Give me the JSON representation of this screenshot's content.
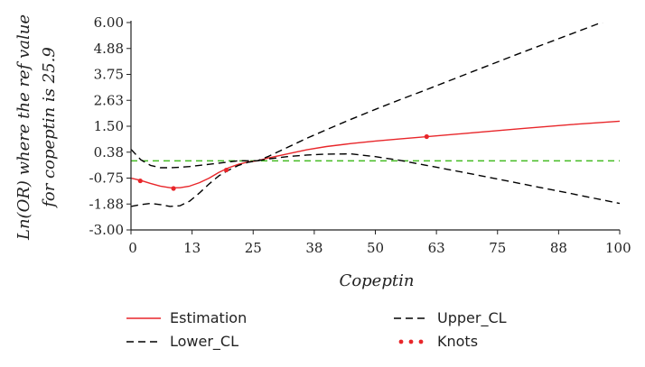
{
  "chart_data": {
    "type": "line",
    "xlabel": "Copeptin",
    "ylabel_line1": "Ln(OR) where the ref value",
    "ylabel_line2": "for copeptin is 25.9",
    "xlim": [
      0,
      100
    ],
    "ylim": [
      -3.0,
      6.0
    ],
    "x_ticks": [
      "0",
      "13",
      "25",
      "38",
      "50",
      "63",
      "75",
      "88",
      "100"
    ],
    "x_tick_values": [
      0,
      12.5,
      25,
      37.5,
      50,
      62.5,
      75,
      87.5,
      100
    ],
    "y_ticks": [
      "6.00",
      "4.88",
      "3.75",
      "2.63",
      "1.50",
      "0.38",
      "-0.75",
      "-1.88",
      "-3.00"
    ],
    "y_tick_values": [
      6.0,
      4.875,
      3.75,
      2.625,
      1.5,
      0.375,
      -0.75,
      -1.875,
      -3.0
    ],
    "reference_line": {
      "y": 0,
      "color": "#44bb22"
    },
    "series": [
      {
        "name": "Estimation",
        "color": "#e8262a",
        "style": "solid",
        "x": [
          0,
          2,
          4,
          6,
          8,
          10,
          12,
          14,
          16,
          18,
          20,
          22,
          24,
          25.9,
          28,
          32,
          36,
          40,
          45,
          50,
          55,
          60,
          70,
          80,
          90,
          100
        ],
        "y": [
          -0.75,
          -0.85,
          -0.98,
          -1.1,
          -1.17,
          -1.17,
          -1.1,
          -0.95,
          -0.75,
          -0.5,
          -0.3,
          -0.15,
          -0.05,
          0.0,
          0.12,
          0.3,
          0.48,
          0.62,
          0.75,
          0.86,
          0.95,
          1.04,
          1.22,
          1.4,
          1.57,
          1.72
        ]
      },
      {
        "name": "Upper_CL",
        "color": "#000000",
        "style": "dashed",
        "x": [
          0,
          2,
          4,
          6,
          8,
          10,
          12,
          14,
          16,
          18,
          20,
          22,
          24,
          25.9,
          28,
          32,
          36,
          40,
          45,
          50,
          55,
          60,
          70,
          80,
          90,
          100
        ],
        "y": [
          0.5,
          0.05,
          -0.2,
          -0.3,
          -0.3,
          -0.28,
          -0.25,
          -0.2,
          -0.15,
          -0.1,
          -0.05,
          0.0,
          0.0,
          0.0,
          0.18,
          0.58,
          0.98,
          1.35,
          1.8,
          2.23,
          2.65,
          3.05,
          3.88,
          4.7,
          5.5,
          6.3
        ]
      },
      {
        "name": "Lower_CL",
        "color": "#000000",
        "style": "dashed",
        "x": [
          0,
          2,
          4,
          6,
          8,
          10,
          12,
          14,
          16,
          18,
          20,
          22,
          24,
          25.9,
          28,
          32,
          36,
          40,
          45,
          50,
          55,
          60,
          70,
          80,
          90,
          100
        ],
        "y": [
          -1.98,
          -1.9,
          -1.85,
          -1.9,
          -1.98,
          -1.95,
          -1.75,
          -1.4,
          -1.0,
          -0.65,
          -0.4,
          -0.2,
          -0.06,
          0.0,
          0.08,
          0.18,
          0.25,
          0.29,
          0.3,
          0.18,
          0.02,
          -0.18,
          -0.58,
          -1.0,
          -1.42,
          -1.85
        ]
      },
      {
        "name": "Knots",
        "color": "#e8262a",
        "style": "points",
        "x": [
          1.9,
          8.7,
          19.5,
          60.5
        ],
        "y": [
          -0.87,
          -1.2,
          -0.4,
          1.05
        ]
      }
    ],
    "legend": {
      "placement": "bottom",
      "items": [
        {
          "label": "Estimation",
          "style": "solid",
          "color": "#e8262a"
        },
        {
          "label": "Upper_CL",
          "style": "dashed",
          "color": "#000000"
        },
        {
          "label": "Lower_CL",
          "style": "dashed",
          "color": "#000000"
        },
        {
          "label": "Knots",
          "style": "points",
          "color": "#e8262a"
        }
      ]
    }
  }
}
